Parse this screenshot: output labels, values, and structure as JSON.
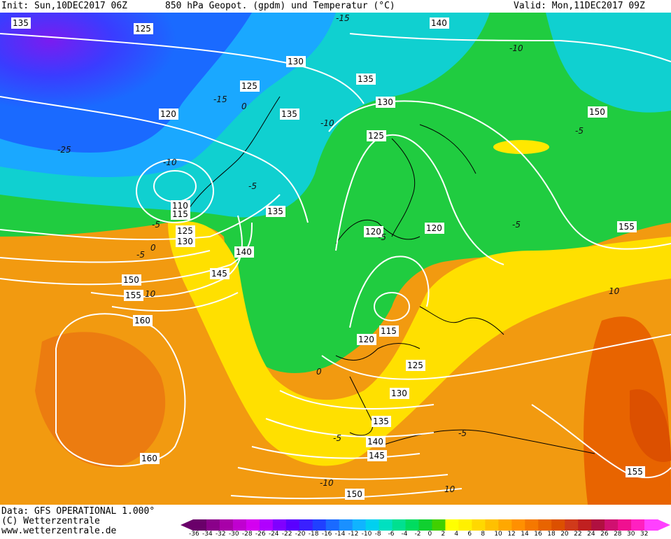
{
  "header": {
    "init": "Init: Sun,10DEC2017 06Z",
    "title": "850 hPa Geopot. (gpdm) und Temperatur (°C)",
    "valid": "Valid: Mon,11DEC2017 09Z"
  },
  "geopotential_labels": [
    "135",
    "125",
    "140",
    "130",
    "125",
    "135",
    "120",
    "135",
    "130",
    "125",
    "150",
    "110",
    "115",
    "125",
    "130",
    "135",
    "120",
    "120",
    "155",
    "140",
    "145",
    "150",
    "155",
    "160",
    "115",
    "120",
    "125",
    "130",
    "135",
    "140",
    "145",
    "150",
    "160",
    "155"
  ],
  "temperature_labels": [
    "-15",
    "-25",
    "-10",
    "-15",
    "-10",
    "-5",
    "-5",
    "-10",
    "-5",
    "-5",
    "-5",
    "0",
    "0",
    "-5",
    "10",
    "0",
    "-5",
    "-5",
    "10",
    "-10",
    "10"
  ],
  "footer": {
    "line1": "Data: GFS OPERATIONAL 1.000°",
    "line2": "(C) Wetterzentrale",
    "line3": "www.wetterzentrale.de"
  },
  "legend": {
    "ticks": [
      "-36",
      "-34",
      "-32",
      "-30",
      "-28",
      "-26",
      "-24",
      "-22",
      "-20",
      "-18",
      "-16",
      "-14",
      "-12",
      "-10",
      "-8",
      "-6",
      "-4",
      "-2",
      "0",
      "2",
      "4",
      "6",
      "8",
      "10",
      "12",
      "14",
      "16",
      "18",
      "20",
      "22",
      "24",
      "26",
      "28",
      "30",
      "32"
    ],
    "colors": [
      "#6a006a",
      "#8a008a",
      "#a800a8",
      "#c000d0",
      "#d400f0",
      "#b000ff",
      "#8000ff",
      "#5a00ff",
      "#3a20ff",
      "#2040ff",
      "#1a6aff",
      "#1a90ff",
      "#10b4ff",
      "#00d0f0",
      "#00e0c0",
      "#00e090",
      "#00dc60",
      "#10d030",
      "#40d000",
      "#ffff00",
      "#fff000",
      "#ffd800",
      "#ffc000",
      "#ffa800",
      "#ff9000",
      "#f57800",
      "#e86400",
      "#dc5000",
      "#d03a1a",
      "#c02020",
      "#b01040",
      "#d01070",
      "#f01090",
      "#ff20c0",
      "#ff40ff"
    ]
  }
}
